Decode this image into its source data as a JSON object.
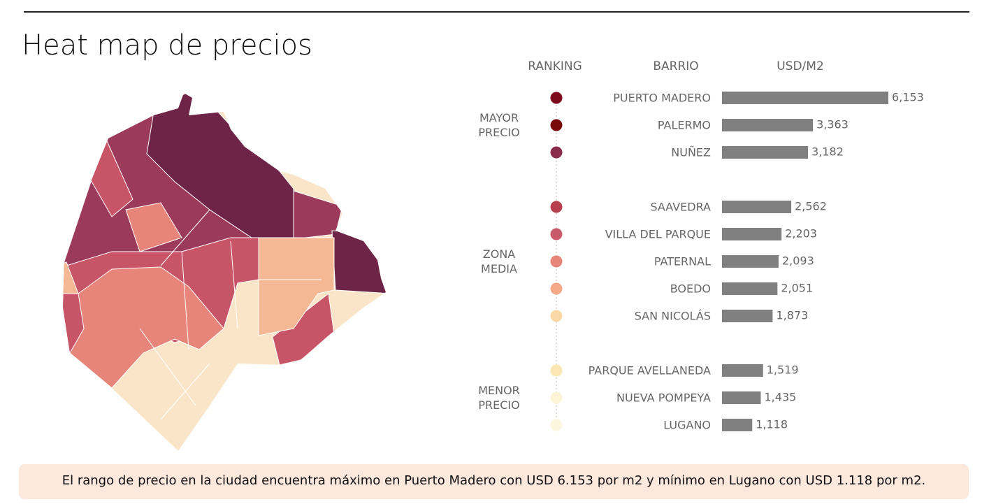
{
  "chart_data": {
    "type": "bar",
    "orientation": "horizontal",
    "title": "Heat map de precios",
    "headers": [
      "RANKING",
      "BARRIO",
      "USD/M2"
    ],
    "bar_color": "#808080",
    "groups": [
      {
        "label": "MAYOR PRECIO",
        "categories": [
          "PUERTO MADERO",
          "PALERMO",
          "NUÑEZ"
        ],
        "values": [
          6153,
          3363,
          3182
        ],
        "value_labels": [
          "6,153",
          "3,363",
          "3,182"
        ],
        "colors": [
          "#7d0a1e",
          "#7a0a0a",
          "#8a2d4c"
        ]
      },
      {
        "label": "ZONA MEDIA",
        "categories": [
          "SAAVEDRA",
          "VILLA DEL PARQUE",
          "PATERNAL",
          "BOEDO",
          "SAN NICOLÁS"
        ],
        "values": [
          2562,
          2203,
          2093,
          2051,
          1873
        ],
        "value_labels": [
          "2,562",
          "2,203",
          "2,093",
          "2,051",
          "1,873"
        ],
        "colors": [
          "#b8404e",
          "#c75a6a",
          "#e8857a",
          "#f6a986",
          "#fad8a8"
        ]
      },
      {
        "label": "MENOR PRECIO",
        "categories": [
          "PARQUE AVELLANEDA",
          "NUEVA POMPEYA",
          "LUGANO"
        ],
        "values": [
          1519,
          1435,
          1118
        ],
        "value_labels": [
          "1,519",
          "1,435",
          "1,118"
        ],
        "colors": [
          "#fbe6b4",
          "#fdf3d6",
          "#fdf6de"
        ]
      }
    ],
    "note": "El rango de precio en la ciudad encuentra máximo en Puerto Madero con USD 6.153 por m2 y mínimo en Lugano con USD 1.118 por m2."
  }
}
